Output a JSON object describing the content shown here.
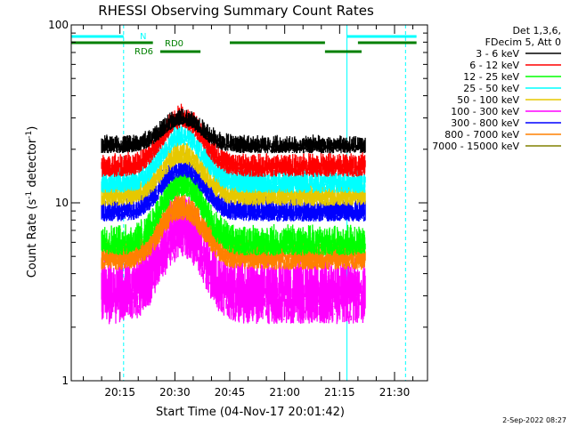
{
  "chart_data": {
    "type": "line",
    "title": "RHESSI Observing Summary Count Rates",
    "xlabel": "Start Time (04-Nov-17 20:01:42)",
    "ylabel": "Count Rate (s⁻¹ detector⁻¹)",
    "ylabel_parts": {
      "a": "Count Rate (s",
      "b": "-1",
      "c": " detector",
      "d": "-1",
      "e": ")"
    },
    "y_scale": "log",
    "ylim": [
      1,
      100
    ],
    "y_ticks": [
      {
        "value": 1,
        "label": "1"
      },
      {
        "value": 10,
        "label": "10"
      },
      {
        "value": 100,
        "label": "100"
      }
    ],
    "xlim": [
      "20:01:42",
      "21:39:00"
    ],
    "x_ticks": [
      "20:15",
      "20:30",
      "20:45",
      "21:00",
      "21:15",
      "21:30"
    ],
    "legend": {
      "header": [
        "Det 1,3,6,",
        "FDecim 5, Att 0"
      ],
      "position": "outside-right"
    },
    "series": [
      {
        "name": "3 - 6 keV",
        "color": "#000000",
        "base": 21.0,
        "peak": 30.0,
        "noise": 0.06
      },
      {
        "name": "6 - 12 keV",
        "color": "#ff0000",
        "base": 16.0,
        "peak": 30.0,
        "noise": 0.08
      },
      {
        "name": "12 - 25 keV",
        "color": "#00ff00",
        "base": 6.0,
        "peak": 13.0,
        "noise": 0.1
      },
      {
        "name": "25 - 50 keV",
        "color": "#00ffff",
        "base": 13.0,
        "peak": 24.0,
        "noise": 0.08
      },
      {
        "name": "50 - 100 keV",
        "color": "#e6c800",
        "base": 11.0,
        "peak": 19.0,
        "noise": 0.08
      },
      {
        "name": "100 - 300 keV",
        "color": "#ff00ff",
        "base": 3.2,
        "peak": 7.5,
        "noise": 0.22
      },
      {
        "name": "300 - 800 keV",
        "color": "#0000ff",
        "base": 9.0,
        "peak": 16.0,
        "noise": 0.08
      },
      {
        "name": "800 - 7000 keV",
        "color": "#ff8000",
        "base": 5.0,
        "peak": 9.5,
        "noise": 0.1
      },
      {
        "name": "7000 - 15000 keV",
        "color": "#808000",
        "base": 0,
        "peak": 0,
        "noise": 0
      }
    ],
    "data_start": "20:10:00",
    "data_end": "21:22:00",
    "peak_time": "20:32:00",
    "annotations": {
      "N": {
        "label": "N",
        "color": "#00ffff",
        "segments": [
          [
            "20:01:42",
            "20:16:00"
          ],
          [
            "21:17:00",
            "21:36:00"
          ]
        ]
      },
      "RD0": {
        "label": "RD0",
        "color": "#008000",
        "segments": [
          [
            "20:01:42",
            "20:24:00"
          ],
          [
            "20:45:00",
            "21:11:00"
          ],
          [
            "21:20:00",
            "21:36:00"
          ]
        ]
      },
      "RD6": {
        "label": "RD6",
        "color": "#008000",
        "segments": [
          [
            "20:26:00",
            "20:37:00"
          ],
          [
            "21:11:00",
            "21:21:00"
          ]
        ]
      },
      "vlines_solid": [
        "20:01:42",
        "21:17:00"
      ],
      "vlines_dashed": [
        "20:16:00",
        "21:33:00"
      ]
    },
    "footer": "2-Sep-2022 08:27"
  }
}
